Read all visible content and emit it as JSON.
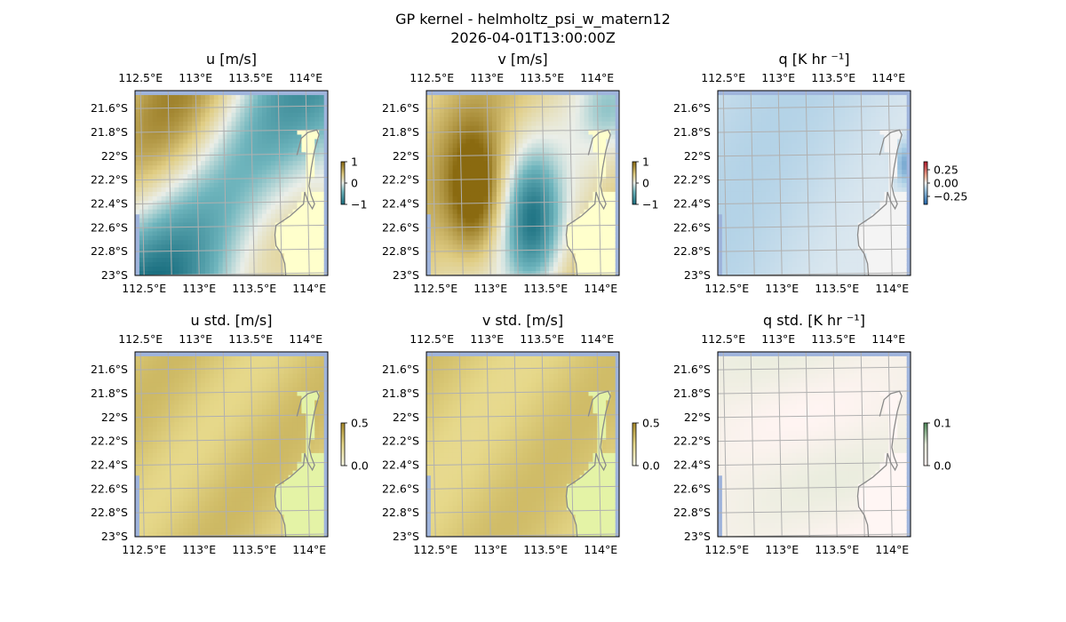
{
  "figure": {
    "title": "GP kernel - helmholtz_psi_w_matern12",
    "subtitle": "2026-04-01T13:00:00Z"
  },
  "chart_data": [
    {
      "type": "heatmap",
      "title": "u [m/s]",
      "field": "u",
      "cmap": "diverging-brown-teal",
      "clim": [
        -1,
        1
      ],
      "colorbar_ticks": [
        "1",
        "0",
        "−1"
      ],
      "colorbar_tick_values": [
        1,
        0,
        -1
      ],
      "x_ticks": [
        "112.5°E",
        "113°E",
        "113.5°E",
        "114°E"
      ],
      "x_tick_values": [
        112.5,
        113,
        113.5,
        114
      ],
      "y_ticks": [
        "21.6°S",
        "21.8°S",
        "22°S",
        "22.2°S",
        "22.4°S",
        "22.6°S",
        "22.8°S",
        "23°S"
      ],
      "y_tick_values": [
        -21.6,
        -21.8,
        -22,
        -22.2,
        -22.4,
        -22.6,
        -22.8,
        -23
      ],
      "xlim": [
        112.45,
        114.2
      ],
      "ylim": [
        -23.0,
        -21.45
      ],
      "grid": true
    },
    {
      "type": "heatmap",
      "title": "v [m/s]",
      "field": "v",
      "cmap": "diverging-brown-teal",
      "clim": [
        -1,
        1
      ],
      "colorbar_ticks": [
        "1",
        "0",
        "−1"
      ],
      "colorbar_tick_values": [
        1,
        0,
        -1
      ],
      "x_ticks": [
        "112.5°E",
        "113°E",
        "113.5°E",
        "114°E"
      ],
      "x_tick_values": [
        112.5,
        113,
        113.5,
        114
      ],
      "y_ticks": [
        "21.6°S",
        "21.8°S",
        "22°S",
        "22.2°S",
        "22.4°S",
        "22.6°S",
        "22.8°S",
        "23°S"
      ],
      "y_tick_values": [
        -21.6,
        -21.8,
        -22,
        -22.2,
        -22.4,
        -22.6,
        -22.8,
        -23
      ],
      "xlim": [
        112.45,
        114.2
      ],
      "ylim": [
        -23.0,
        -21.45
      ],
      "grid": true
    },
    {
      "type": "heatmap",
      "title": "q [K hr ⁻¹]",
      "field": "q",
      "cmap": "diverging-red-blue",
      "clim": [
        -0.4,
        0.4
      ],
      "colorbar_ticks": [
        "0.25",
        "0.00",
        "−0.25"
      ],
      "colorbar_tick_values": [
        0.25,
        0,
        -0.25
      ],
      "x_ticks": [
        "112.5°E",
        "113°E",
        "113.5°E",
        "114°E"
      ],
      "x_tick_values": [
        112.5,
        113,
        113.5,
        114
      ],
      "y_ticks": [
        "21.6°S",
        "21.8°S",
        "22°S",
        "22.2°S",
        "22.4°S",
        "22.6°S",
        "22.8°S",
        "23°S"
      ],
      "y_tick_values": [
        -21.6,
        -21.8,
        -22,
        -22.2,
        -22.4,
        -22.6,
        -22.8,
        -23
      ],
      "xlim": [
        112.45,
        114.2
      ],
      "ylim": [
        -23.0,
        -21.45
      ],
      "grid": true
    },
    {
      "type": "heatmap",
      "title": "u std. [m/s]",
      "field": "u_std",
      "cmap": "sequential-olive",
      "clim": [
        0,
        0.5
      ],
      "colorbar_ticks": [
        "0.5",
        "0.0"
      ],
      "colorbar_tick_values": [
        0.5,
        0
      ],
      "x_ticks": [
        "112.5°E",
        "113°E",
        "113.5°E",
        "114°E"
      ],
      "x_tick_values": [
        112.5,
        113,
        113.5,
        114
      ],
      "y_ticks": [
        "21.6°S",
        "21.8°S",
        "22°S",
        "22.2°S",
        "22.4°S",
        "22.6°S",
        "22.8°S",
        "23°S"
      ],
      "y_tick_values": [
        -21.6,
        -21.8,
        -22,
        -22.2,
        -22.4,
        -22.6,
        -22.8,
        -23
      ],
      "xlim": [
        112.45,
        114.2
      ],
      "ylim": [
        -23.0,
        -21.45
      ],
      "grid": true
    },
    {
      "type": "heatmap",
      "title": "v std. [m/s]",
      "field": "v_std",
      "cmap": "sequential-olive",
      "clim": [
        0,
        0.5
      ],
      "colorbar_ticks": [
        "0.5",
        "0.0"
      ],
      "colorbar_tick_values": [
        0.5,
        0
      ],
      "x_ticks": [
        "112.5°E",
        "113°E",
        "113.5°E",
        "114°E"
      ],
      "x_tick_values": [
        112.5,
        113,
        113.5,
        114
      ],
      "y_ticks": [
        "21.6°S",
        "21.8°S",
        "22°S",
        "22.2°S",
        "22.4°S",
        "22.6°S",
        "22.8°S",
        "23°S"
      ],
      "y_tick_values": [
        -21.6,
        -21.8,
        -22,
        -22.2,
        -22.4,
        -22.6,
        -22.8,
        -23
      ],
      "xlim": [
        112.45,
        114.2
      ],
      "ylim": [
        -23.0,
        -21.45
      ],
      "grid": true
    },
    {
      "type": "heatmap",
      "title": "q std. [K hr ⁻¹]",
      "field": "q_std",
      "cmap": "sequential-pink-green",
      "clim": [
        0,
        0.1
      ],
      "colorbar_ticks": [
        "0.1",
        "0.0"
      ],
      "colorbar_tick_values": [
        0.1,
        0
      ],
      "x_ticks": [
        "112.5°E",
        "113°E",
        "113.5°E",
        "114°E"
      ],
      "x_tick_values": [
        112.5,
        113,
        113.5,
        114
      ],
      "y_ticks": [
        "21.6°S",
        "21.8°S",
        "22°S",
        "22.2°S",
        "22.4°S",
        "22.6°S",
        "22.8°S",
        "23°S"
      ],
      "y_tick_values": [
        -21.6,
        -21.8,
        -22,
        -22.2,
        -22.4,
        -22.6,
        -22.8,
        -23
      ],
      "xlim": [
        112.45,
        114.2
      ],
      "ylim": [
        -23.0,
        -21.45
      ],
      "grid": true
    }
  ],
  "colors": {
    "ocean": "#9fb4dc",
    "land_u_v": "#ffffcc",
    "land_std": "#e4f3a6",
    "land_q": "#f4f4f4",
    "land_qstd": "#fff6f4",
    "coastline": "#8a8a8a",
    "gridline": "#b0b0b0"
  }
}
